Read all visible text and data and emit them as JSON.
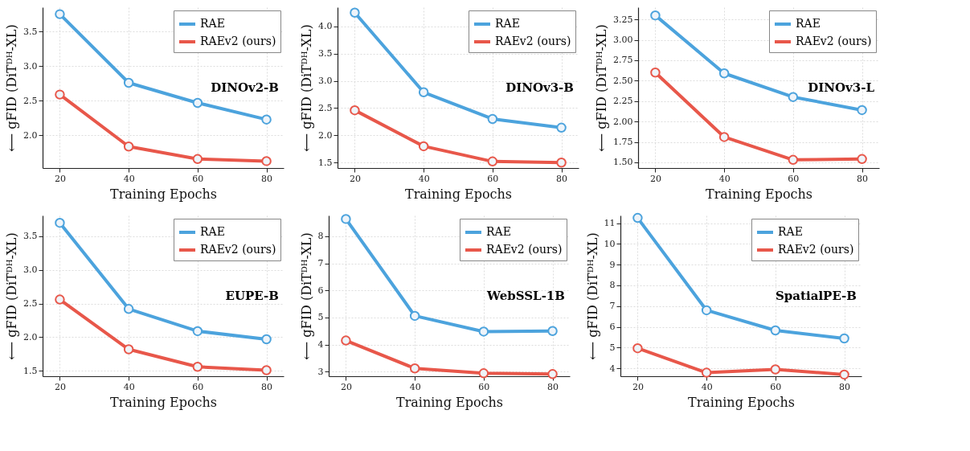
{
  "chart_data": [
    {
      "type": "line",
      "xlabel": "Training Epochs",
      "ylabel": "⟵ gFID (DiTᴰᴴ-XL)",
      "annotations": [
        "DINOv2-B"
      ],
      "x": [
        20,
        40,
        60,
        80
      ],
      "xlim": [
        15,
        85
      ],
      "xticks": [
        20,
        40,
        60,
        80
      ],
      "ylim": [
        1.53,
        3.85
      ],
      "yticks": [
        {
          "value": 2,
          "label": "2.0"
        },
        2.5,
        {
          "value": 3,
          "label": "3.0"
        },
        3.5
      ],
      "grid": true,
      "legend": "top right",
      "marker": "circle",
      "line_style": "solid",
      "series": [
        {
          "name": "RAE",
          "color": "#4ca3dd",
          "values": [
            3.75,
            2.76,
            2.47,
            2.23
          ]
        },
        {
          "name": "RAEv2 (ours)",
          "color": "#e8574a",
          "values": [
            2.59,
            1.84,
            1.66,
            1.63
          ]
        }
      ]
    },
    {
      "type": "line",
      "xlabel": "Training Epochs",
      "ylabel": "⟵ gFID (DiTᴰᴴ-XL)",
      "annotations": [
        "DINOv3-B"
      ],
      "x": [
        20,
        40,
        60,
        80
      ],
      "xlim": [
        15,
        85
      ],
      "xticks": [
        20,
        40,
        60,
        80
      ],
      "ylim": [
        1.4,
        4.35
      ],
      "yticks": [
        1.5,
        {
          "value": 2,
          "label": "2.0"
        },
        2.5,
        {
          "value": 3,
          "label": "3.0"
        },
        3.5,
        {
          "value": 4,
          "label": "4.0"
        }
      ],
      "grid": true,
      "legend": "top right",
      "marker": "circle",
      "line_style": "solid",
      "series": [
        {
          "name": "RAE",
          "color": "#4ca3dd",
          "values": [
            4.25,
            2.79,
            2.3,
            2.14
          ]
        },
        {
          "name": "RAEv2 (ours)",
          "color": "#e8574a",
          "values": [
            2.46,
            1.8,
            1.52,
            1.5
          ]
        }
      ]
    },
    {
      "type": "line",
      "xlabel": "Training Epochs",
      "ylabel": "⟵ gFID (DiTᴰᴴ-XL)",
      "annotations": [
        "DINOv3-L"
      ],
      "x": [
        20,
        40,
        60,
        80
      ],
      "xlim": [
        15,
        85
      ],
      "xticks": [
        20,
        40,
        60,
        80
      ],
      "ylim": [
        1.43,
        3.4
      ],
      "yticks": [
        {
          "value": 1.5,
          "label": "1.50"
        },
        1.75,
        {
          "value": 2,
          "label": "2.00"
        },
        2.25,
        {
          "value": 2.5,
          "label": "2.50"
        },
        2.75,
        {
          "value": 3,
          "label": "3.00"
        },
        3.25
      ],
      "grid": true,
      "legend": "top right",
      "marker": "circle",
      "line_style": "solid",
      "series": [
        {
          "name": "RAE",
          "color": "#4ca3dd",
          "values": [
            3.3,
            2.59,
            2.3,
            2.14
          ]
        },
        {
          "name": "RAEv2 (ours)",
          "color": "#e8574a",
          "values": [
            2.6,
            1.81,
            1.53,
            1.54
          ]
        }
      ]
    },
    {
      "type": "line",
      "xlabel": "Training Epochs",
      "ylabel": "⟵ gFID (DiTᴰᴴ-XL)",
      "annotations": [
        "EUPE-B"
      ],
      "x": [
        20,
        40,
        60,
        80
      ],
      "xlim": [
        15,
        85
      ],
      "xticks": [
        20,
        40,
        60,
        80
      ],
      "ylim": [
        1.42,
        3.81
      ],
      "yticks": [
        1.5,
        {
          "value": 2,
          "label": "2.0"
        },
        2.5,
        {
          "value": 3,
          "label": "3.0"
        },
        3.5
      ],
      "grid": true,
      "legend": "top right",
      "marker": "circle",
      "line_style": "solid",
      "series": [
        {
          "name": "RAE",
          "color": "#4ca3dd",
          "values": [
            3.7,
            2.42,
            2.09,
            1.97
          ]
        },
        {
          "name": "RAEv2 (ours)",
          "color": "#e8574a",
          "values": [
            2.56,
            1.82,
            1.56,
            1.51
          ]
        }
      ]
    },
    {
      "type": "line",
      "xlabel": "Training Epochs",
      "ylabel": "⟵ gFID (DiTᴰᴴ-XL)",
      "annotations": [
        "WebSSL-1B"
      ],
      "x": [
        20,
        40,
        60,
        80
      ],
      "xlim": [
        15,
        85
      ],
      "xticks": [
        20,
        40,
        60,
        80
      ],
      "ylim": [
        2.83,
        8.77
      ],
      "yticks": [
        3,
        4,
        5,
        6,
        7,
        8
      ],
      "grid": true,
      "legend": "top right",
      "marker": "circle",
      "line_style": "solid",
      "series": [
        {
          "name": "RAE",
          "color": "#4ca3dd",
          "values": [
            8.64,
            5.06,
            4.48,
            4.5
          ]
        },
        {
          "name": "RAEv2 (ours)",
          "color": "#e8574a",
          "values": [
            4.15,
            3.12,
            2.94,
            2.91
          ]
        }
      ]
    },
    {
      "type": "line",
      "xlabel": "Training Epochs",
      "ylabel": "⟵ gFID (DiTᴰᴴ-XL)",
      "annotations": [
        "SpatialPE-B"
      ],
      "x": [
        20,
        40,
        60,
        80
      ],
      "xlim": [
        15,
        85
      ],
      "xticks": [
        20,
        40,
        60,
        80
      ],
      "ylim": [
        3.62,
        11.37
      ],
      "yticks": [
        4,
        5,
        6,
        7,
        8,
        9,
        10,
        11
      ],
      "grid": true,
      "legend": "top right",
      "marker": "circle",
      "line_style": "solid",
      "series": [
        {
          "name": "RAE",
          "color": "#4ca3dd",
          "values": [
            11.25,
            6.8,
            5.83,
            5.44
          ]
        },
        {
          "name": "RAEv2 (ours)",
          "color": "#e8574a",
          "values": [
            4.97,
            3.79,
            3.95,
            3.7
          ]
        }
      ]
    }
  ]
}
